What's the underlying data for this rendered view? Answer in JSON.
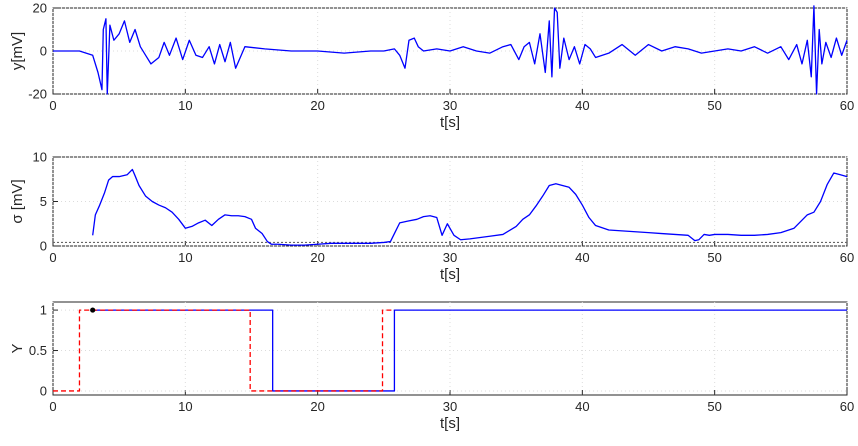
{
  "chart_data": [
    {
      "type": "line",
      "xlabel": "t[s]",
      "ylabel": "y[mV]",
      "xlim": [
        0,
        60
      ],
      "ylim": [
        -20,
        20
      ],
      "xticks": [
        0,
        10,
        20,
        30,
        40,
        50,
        60
      ],
      "yticks": [
        -20,
        0,
        20
      ],
      "grid": true,
      "series": [
        {
          "color": "#0000ff",
          "x": [
            0,
            1,
            2,
            3,
            3.4,
            3.7,
            3.8,
            4.0,
            4.1,
            4.3,
            4.6,
            5.0,
            5.4,
            5.8,
            6.2,
            6.6,
            7.0,
            7.4,
            8.0,
            8.4,
            8.8,
            9.3,
            9.8,
            10.3,
            10.8,
            11.3,
            11.8,
            12.2,
            12.6,
            13.0,
            13.4,
            13.8,
            14.5,
            16,
            18,
            20,
            22,
            24,
            25,
            25.8,
            26.2,
            26.6,
            26.9,
            27.3,
            27.6,
            28,
            29,
            30,
            31,
            32,
            33,
            34,
            34.6,
            35.2,
            35.6,
            36.0,
            36.4,
            36.8,
            37.2,
            37.5,
            37.7,
            37.9,
            38.1,
            38.3,
            38.6,
            39.0,
            39.4,
            39.8,
            40.2,
            40.6,
            41,
            42,
            43,
            44,
            45,
            46,
            47,
            48,
            49,
            50,
            51,
            52,
            53,
            54,
            55,
            55.6,
            56.2,
            56.6,
            57.0,
            57.3,
            57.5,
            57.7,
            57.9,
            58.1,
            58.4,
            58.8,
            59.2,
            59.6,
            60
          ],
          "values": [
            0,
            0,
            0,
            -2,
            -10,
            -18,
            10,
            15,
            -20,
            12,
            5,
            8,
            14,
            4,
            10,
            2,
            -2,
            -6,
            -3,
            4,
            -2,
            6,
            -4,
            5,
            -2,
            -3,
            2,
            -6,
            3,
            -5,
            4,
            -8,
            2,
            1,
            0,
            0,
            -1,
            0,
            0,
            1,
            -2,
            -8,
            5,
            6,
            2,
            0,
            1,
            0,
            2,
            0,
            -1,
            2,
            3,
            -4,
            2,
            4,
            -6,
            8,
            -10,
            14,
            -12,
            20,
            18,
            -8,
            6,
            -4,
            2,
            -6,
            3,
            1,
            -3,
            -1,
            3,
            -2,
            3,
            0,
            2,
            1,
            -1,
            0,
            1,
            0,
            2,
            -1,
            2,
            -4,
            3,
            -6,
            5,
            -12,
            21,
            -20,
            10,
            -6,
            4,
            -3,
            6,
            -2,
            5
          ]
        }
      ]
    },
    {
      "type": "line",
      "xlabel": "t[s]",
      "ylabel": "σ [mV]",
      "xlim": [
        0,
        60
      ],
      "ylim": [
        0,
        10
      ],
      "xticks": [
        0,
        10,
        20,
        30,
        40,
        50,
        60
      ],
      "yticks": [
        0,
        5,
        10
      ],
      "grid": true,
      "series": [
        {
          "color": "#0000ff",
          "x": [
            3.0,
            3.2,
            3.5,
            3.9,
            4.2,
            4.5,
            5,
            5.6,
            6.0,
            6.2,
            6.5,
            7,
            7.5,
            8,
            8.5,
            9,
            9.5,
            10,
            10.5,
            11,
            11.5,
            12,
            12.5,
            13,
            13.5,
            14,
            14.5,
            15,
            15.3,
            15.8,
            16.2,
            16.5,
            17,
            18,
            19,
            20,
            21,
            22,
            23,
            24,
            25,
            25.5,
            25.8,
            26.2,
            26.8,
            27.5,
            28,
            28.5,
            29,
            29.4,
            29.8,
            30.3,
            30.8,
            31.5,
            32,
            33,
            34,
            35,
            35.5,
            36,
            36.5,
            37,
            37.5,
            38,
            38.5,
            39,
            39.5,
            40,
            40.5,
            41,
            42,
            43,
            44,
            45,
            46,
            47,
            48,
            48.5,
            48.8,
            49.2,
            49.6,
            50,
            51,
            52,
            53,
            54,
            55,
            56,
            57,
            57.5,
            58,
            58.5,
            59,
            59.5,
            60
          ],
          "values": [
            1.2,
            3.5,
            4.5,
            6,
            7.4,
            7.8,
            7.8,
            8.0,
            8.6,
            7.9,
            6.8,
            5.6,
            5.0,
            4.6,
            4.3,
            3.8,
            3.0,
            2.0,
            2.2,
            2.6,
            2.9,
            2.3,
            3.0,
            3.5,
            3.4,
            3.4,
            3.3,
            3.0,
            2.0,
            1.4,
            0.5,
            0.2,
            0.2,
            0.1,
            0.1,
            0.2,
            0.3,
            0.3,
            0.3,
            0.3,
            0.4,
            0.5,
            1.4,
            2.6,
            2.8,
            3.0,
            3.3,
            3.4,
            3.2,
            1.2,
            2.5,
            1.2,
            0.7,
            0.8,
            0.9,
            1.1,
            1.3,
            2.2,
            3.0,
            3.5,
            4.5,
            5.6,
            6.8,
            7.0,
            6.8,
            6.6,
            5.8,
            4.6,
            3.2,
            2.3,
            1.8,
            1.7,
            1.6,
            1.5,
            1.4,
            1.3,
            1.2,
            0.6,
            0.7,
            1.3,
            1.2,
            1.3,
            1.3,
            1.2,
            1.2,
            1.3,
            1.5,
            2.0,
            3.5,
            3.8,
            5.0,
            6.9,
            8.2,
            8.0,
            7.8
          ]
        }
      ],
      "threshold": {
        "y": 0.4,
        "color": "#666666",
        "style": "dotted"
      }
    },
    {
      "type": "line",
      "xlabel": "t[s]",
      "ylabel": "Y",
      "xlim": [
        0,
        60
      ],
      "ylim": [
        -0.05,
        1.1
      ],
      "xticks": [
        0,
        10,
        20,
        30,
        40,
        50,
        60
      ],
      "yticks": [
        0,
        0.5,
        1
      ],
      "grid": true,
      "series": [
        {
          "color": "#0000ff",
          "style": "solid",
          "x": [
            3.0,
            16.6,
            16.6,
            25.8,
            25.8,
            60
          ],
          "values": [
            1,
            1,
            0,
            0,
            1,
            1
          ]
        },
        {
          "color": "#ff0000",
          "style": "dashed",
          "x": [
            0,
            2.0,
            2.0,
            3.0,
            3.0,
            14.9,
            14.9,
            16.6,
            16.6,
            24.9,
            24.9,
            25.8
          ],
          "values": [
            0,
            0,
            1,
            1,
            1,
            1,
            0,
            0,
            0,
            0,
            1,
            1
          ]
        }
      ],
      "marker": {
        "x": 3.0,
        "y": 1,
        "color": "#000000"
      }
    }
  ]
}
